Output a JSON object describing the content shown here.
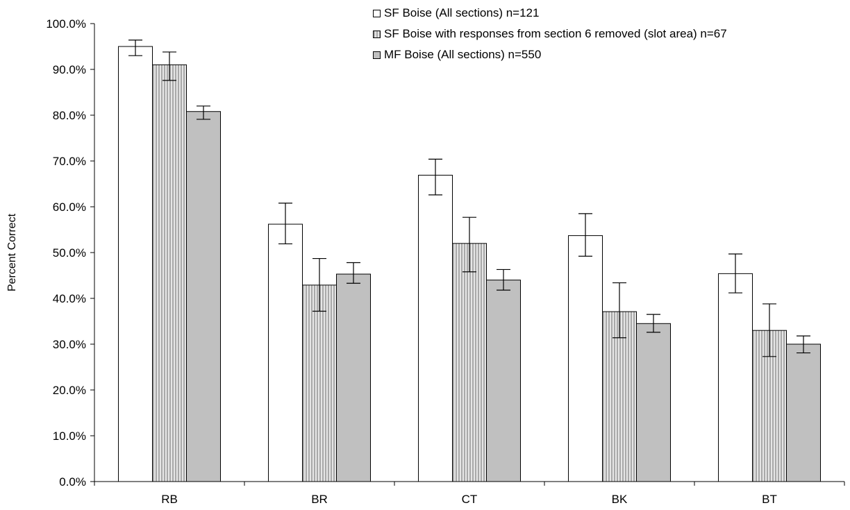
{
  "chart_data": {
    "type": "bar",
    "ylabel": "Percent Correct",
    "xlabel": "",
    "ylim": [
      0,
      100
    ],
    "ytick_step": 10,
    "ytick_labels": [
      "0.0%",
      "10.0%",
      "20.0%",
      "30.0%",
      "40.0%",
      "50.0%",
      "60.0%",
      "70.0%",
      "80.0%",
      "90.0%",
      "100.0%"
    ],
    "grid": false,
    "legend_position": "top-right",
    "categories": [
      "RB",
      "BR",
      "CT",
      "BK",
      "BT"
    ],
    "series": [
      {
        "name": "SF Boise (All sections) n=121",
        "color": "#ffffff",
        "pattern": "none",
        "values": [
          95.0,
          56.2,
          66.9,
          53.7,
          45.4
        ],
        "error_low": [
          93.0,
          51.9,
          62.6,
          49.2,
          41.2
        ],
        "error_high": [
          96.4,
          60.8,
          70.4,
          58.5,
          49.7
        ]
      },
      {
        "name": "SF Boise with responses from section 6 removed (slot area) n=67",
        "color": "#c8c8c8",
        "pattern": "vertical-hatch",
        "values": [
          91.0,
          42.9,
          52.0,
          37.1,
          33.0
        ],
        "error_low": [
          87.6,
          37.2,
          45.8,
          31.4,
          27.3
        ],
        "error_high": [
          93.8,
          48.7,
          57.7,
          43.4,
          38.8
        ]
      },
      {
        "name": "MF Boise (All sections) n=550",
        "color": "#c0c0c0",
        "pattern": "none",
        "values": [
          80.8,
          45.3,
          44.0,
          34.5,
          30.0
        ],
        "error_low": [
          79.1,
          43.3,
          41.8,
          32.6,
          28.1
        ],
        "error_high": [
          82.0,
          47.8,
          46.3,
          36.5,
          31.8
        ]
      }
    ]
  }
}
